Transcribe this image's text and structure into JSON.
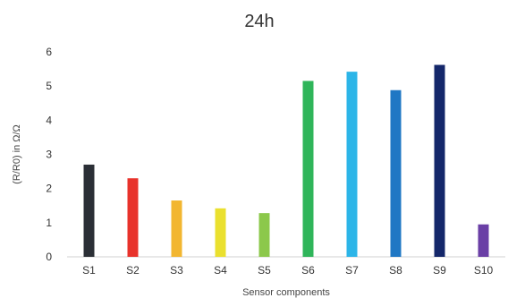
{
  "chart_data": {
    "type": "bar",
    "title": "24h",
    "xlabel": "Sensor components",
    "ylabel": "(R/R0) in Ω/Ω",
    "ylim": [
      0,
      6
    ],
    "yticks": [
      0,
      1,
      2,
      3,
      4,
      5,
      6
    ],
    "grid": false,
    "legend": "none",
    "categories": [
      "S1",
      "S2",
      "S3",
      "S4",
      "S5",
      "S6",
      "S7",
      "S8",
      "S9",
      "S10"
    ],
    "values": [
      2.7,
      2.3,
      1.65,
      1.42,
      1.28,
      5.15,
      5.42,
      4.88,
      5.62,
      0.95
    ],
    "colors": [
      "#2b2f36",
      "#e8322b",
      "#f2b630",
      "#eae02f",
      "#8cc84b",
      "#2fb55a",
      "#2cb5e8",
      "#1f77c4",
      "#14276a",
      "#6a3fa6"
    ]
  }
}
